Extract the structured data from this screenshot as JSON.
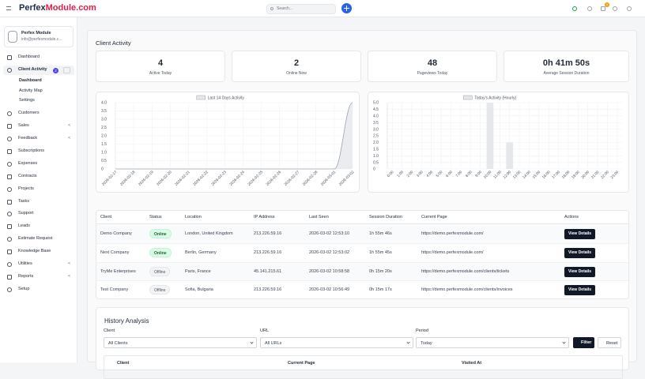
{
  "header": {
    "logo_a": "Perfex",
    "logo_b": "Module.com",
    "search_placeholder": "Search...",
    "notification_count": "1"
  },
  "sidebar": {
    "profile": {
      "name": "Perfex Module",
      "email": "info@perfexmodule.c..."
    },
    "menu": [
      {
        "label": "Dashboard"
      },
      {
        "label": "Client Activity",
        "badge": "2",
        "active": true
      },
      {
        "label": "Dashboard",
        "sub": true,
        "current": true
      },
      {
        "label": "Activity Map",
        "sub": true
      },
      {
        "label": "Settings",
        "sub": true
      },
      {
        "label": "Customers"
      },
      {
        "label": "Sales",
        "chevron": "<"
      },
      {
        "label": "Feedback",
        "chevron": "<"
      },
      {
        "label": "Subscriptions"
      },
      {
        "label": "Expenses"
      },
      {
        "label": "Contracts"
      },
      {
        "label": "Projects"
      },
      {
        "label": "Tasks"
      },
      {
        "label": "Support"
      },
      {
        "label": "Leads"
      },
      {
        "label": "Estimate Request"
      },
      {
        "label": "Knowledge Base"
      },
      {
        "label": "Utilities",
        "chevron": "<"
      },
      {
        "label": "Reports",
        "chevron": "<"
      },
      {
        "label": "Setup"
      }
    ]
  },
  "page_title": "Client Activity",
  "stats": [
    {
      "value": "4",
      "label": "Active Today"
    },
    {
      "value": "2",
      "label": "Online Now"
    },
    {
      "value": "48",
      "label": "Pageviews Today"
    },
    {
      "value": "0h 41m 50s",
      "label": "Average Session Duration"
    }
  ],
  "charts": [
    {
      "type": "line",
      "legend": "Last 14 Days Activity",
      "color": "#9ca3af",
      "categories": [
        "2026-02-17",
        "2026-02-18",
        "2026-02-19",
        "2026-02-20",
        "2026-02-21",
        "2026-02-22",
        "2026-02-23",
        "2026-02-24",
        "2026-02-25",
        "2026-02-26",
        "2026-02-27",
        "2026-02-28",
        "2026-03-01",
        "2026-03-02"
      ],
      "values": [
        0,
        0,
        0,
        0,
        0,
        0,
        0,
        0,
        0,
        0,
        0,
        0,
        0,
        4
      ],
      "ylim": [
        0,
        4
      ],
      "yticks": [
        0,
        0.5,
        {
          "value": 1,
          "label": "1.0"
        },
        1.5,
        {
          "value": 2,
          "label": "2.0"
        },
        2.5,
        {
          "value": 3,
          "label": "3.0"
        },
        3.5,
        {
          "value": 4,
          "label": "4.0"
        }
      ],
      "grid": true
    },
    {
      "type": "bar",
      "legend": "Today's Activity (Hourly)",
      "color": "#e5e7eb",
      "categories": [
        "0:00",
        "1:00",
        "2:00",
        "3:00",
        "4:00",
        "5:00",
        "6:00",
        "7:00",
        "8:00",
        "9:00",
        "10:00",
        "11:00",
        "12:00",
        "13:00",
        "14:00",
        "15:00",
        "16:00",
        "17:00",
        "18:00",
        "19:00",
        "20:00",
        "21:00",
        "22:00",
        "23:00"
      ],
      "values": [
        0,
        0,
        0,
        0,
        0,
        0,
        0,
        0,
        0,
        0,
        5,
        0,
        2,
        0,
        0,
        0,
        0,
        0,
        0,
        0,
        0,
        0,
        0,
        0
      ],
      "ylim": [
        0,
        5
      ],
      "yticks": [
        0,
        0.5,
        {
          "value": 1,
          "label": "1.0"
        },
        1.5,
        {
          "value": 2,
          "label": "2.0"
        },
        2.5,
        {
          "value": 3,
          "label": "3.0"
        },
        3.5,
        {
          "value": 4,
          "label": "4.0"
        },
        4.5,
        {
          "value": 5,
          "label": "5.0"
        }
      ],
      "grid": true
    }
  ],
  "table": {
    "headers": [
      "Client",
      "Status",
      "Location",
      "IP Address",
      "Last Seen",
      "Session Duration",
      "Current Page",
      "Actions"
    ],
    "rows": [
      [
        "Demo Company",
        "Online",
        "London, United Kingdom",
        "213.226.59.16",
        "2026-03-02 12:53:10",
        "1h 55m 46s",
        "https://demo.perfexmodule.com/",
        "View Details"
      ],
      [
        "Next Company",
        "Online",
        "Berlin, Germany",
        "213.226.59.16",
        "2026-03-02 12:53:02",
        "1h 55m 45s",
        "https://demo.perfexmodule.com/",
        "View Details"
      ],
      [
        "TryMe Enterprises",
        "Offline",
        "Paris, France",
        "45.141.215.61",
        "2026-03-02 10:58:58",
        "0h 15m 20s",
        "https://demo.perfexmodule.com/clients/tickets",
        "View Details"
      ],
      [
        "Test Company",
        "Offline",
        "Sofia, Bulgaria",
        "213.226.59.16",
        "2026-03-02 10:56:49",
        "0h 15m 17s",
        "https://demo.perfexmodule.com/clients/invoices",
        "View Details"
      ]
    ]
  },
  "history": {
    "title": "History Analysis",
    "filters": [
      {
        "label": "Client",
        "value": "All Clients"
      },
      {
        "label": "URL",
        "value": "All URLs"
      },
      {
        "label": "Period",
        "value": "Today"
      }
    ],
    "filter_button": "Filter",
    "reset_button": "Reset",
    "headers": [
      "Client",
      "Current Page",
      "Visited At"
    ]
  }
}
